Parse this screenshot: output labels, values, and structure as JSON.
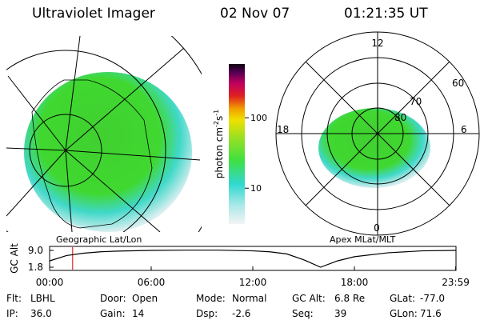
{
  "header": {
    "instrument": "Ultraviolet Imager",
    "date": "02 Nov 07",
    "time": "01:21:35 UT"
  },
  "maps": {
    "left_caption": "Geographic Lat/Lon",
    "right_caption": "Apex MLat/MLT",
    "mlt_labels": [
      "12",
      "18",
      "6",
      "0"
    ],
    "mlat_labels": [
      "60",
      "70",
      "80"
    ]
  },
  "colorbar": {
    "label": [
      "photon cm",
      "-2",
      "s",
      "-1"
    ],
    "log": true,
    "lim": [
      3.1,
      580
    ],
    "ticks": [
      10,
      100
    ]
  },
  "chart_data": {
    "type": "line",
    "ylabel": "GC Alt",
    "color": "#000000",
    "x": [
      0,
      1,
      2,
      3,
      4,
      6,
      8,
      10,
      12,
      13,
      14,
      15,
      16,
      17,
      18,
      20,
      22,
      23.98
    ],
    "values": [
      4.5,
      6.8,
      7.8,
      8.4,
      8.7,
      9.0,
      9.1,
      9.1,
      8.8,
      8.4,
      7.5,
      5.0,
      1.8,
      4.5,
      6.3,
      8.0,
      8.8,
      9.0
    ],
    "xlim": [
      0,
      24
    ],
    "xticks": [
      {
        "value": 0,
        "label": "00:00"
      },
      {
        "value": 6,
        "label": "06:00"
      },
      {
        "value": 12,
        "label": "12:00"
      },
      {
        "value": 18,
        "label": "18:00"
      },
      {
        "value": 23.98,
        "label": "23:59"
      }
    ],
    "ylim": [
      1.8,
      9.0
    ],
    "yticks": [
      {
        "value": 9.0,
        "label": "9.0"
      },
      {
        "value": 1.8,
        "label": "1.8"
      }
    ],
    "current_time": 1.36,
    "current_color": "#e00000"
  },
  "footer": {
    "rows": [
      [
        {
          "label": "Flt:",
          "value": "LBHL"
        },
        {
          "label": "Door:",
          "value": "Open"
        },
        {
          "label": "Mode:",
          "value": "Normal"
        },
        {
          "label": "GC Alt:",
          "value": "6.8 Re"
        },
        {
          "label": "GLat:",
          "value": "-77.0"
        }
      ],
      [
        {
          "label": "IP:",
          "value": "36.0"
        },
        {
          "label": "Gain:",
          "value": "14"
        },
        {
          "label": "Dsp:",
          "value": "-2.6"
        },
        {
          "label": "Seq:",
          "value": "39"
        },
        {
          "label": "GLon:",
          "value": "71.6"
        }
      ]
    ]
  }
}
